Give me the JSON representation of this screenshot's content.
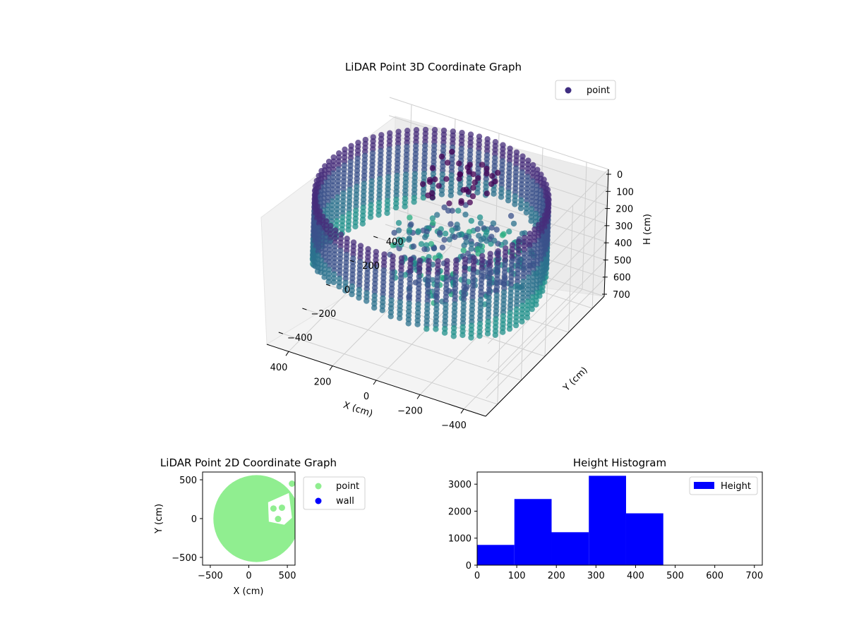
{
  "colors": {
    "scatter2d": "#90ee90",
    "wall": "#0000ff",
    "histogram": "#0000ff",
    "viridis_low": "#440154",
    "viridis_mid": "#3b528b",
    "viridis_teal": "#21918c",
    "viridis_light": "#5ec962"
  },
  "chart_data": [
    {
      "type": "scatter",
      "subtype": "3d",
      "title": "LiDAR Point 3D Coordinate Graph",
      "xlabel": "X (cm)",
      "ylabel": "Y (cm)",
      "zlabel": "H (cm)",
      "xticks": [
        "−400",
        "−200",
        "0",
        "200",
        "400"
      ],
      "yticks": [
        "400",
        "200",
        "0",
        "−200",
        "−400"
      ],
      "zticks": [
        "0",
        "100",
        "200",
        "300",
        "400",
        "500",
        "600",
        "700"
      ],
      "xlim": [
        -500,
        500
      ],
      "ylim": [
        -500,
        500
      ],
      "zlim": [
        0,
        700
      ],
      "z_inverted": true,
      "colormap": "viridis",
      "legend": {
        "labels": [
          "point"
        ],
        "placement": "top-right"
      },
      "description_values": {
        "shape": "cylindrical wall of points, radius ~500 cm",
        "height_range": [
          0,
          470
        ]
      }
    },
    {
      "type": "scatter",
      "title": "LiDAR Point 2D Coordinate Graph",
      "xlabel": "X (cm)",
      "ylabel": "Y (cm)",
      "xticks": [
        "−500",
        "0",
        "500"
      ],
      "yticks": [
        "500",
        "0",
        "−500"
      ],
      "xlim": [
        -600,
        600
      ],
      "ylim": [
        -600,
        600
      ],
      "series": [
        {
          "name": "point",
          "color": "#90ee90",
          "circle": {
            "cx": 100,
            "cy": 0,
            "r": 560
          },
          "extra_points": [
            [
              320,
              130
            ],
            [
              380,
              -5
            ],
            [
              430,
              140
            ],
            [
              560,
              450
            ]
          ]
        },
        {
          "name": "wall",
          "color": "#0000ff",
          "points": []
        }
      ],
      "legend": {
        "labels": [
          "point",
          "wall"
        ],
        "placement": "outside-right"
      }
    },
    {
      "type": "bar",
      "subtype": "histogram",
      "title": "Height Histogram",
      "xticks": [
        "0",
        "100",
        "200",
        "300",
        "400",
        "500",
        "600",
        "700"
      ],
      "yticks": [
        "0",
        "1000",
        "2000",
        "3000"
      ],
      "xlim": [
        0,
        720
      ],
      "ylim": [
        0,
        3450
      ],
      "bins": [
        {
          "x0": 0,
          "x1": 94,
          "value": 750
        },
        {
          "x0": 94,
          "x1": 188,
          "value": 2450
        },
        {
          "x0": 188,
          "x1": 282,
          "value": 1220
        },
        {
          "x0": 282,
          "x1": 376,
          "value": 3310
        },
        {
          "x0": 376,
          "x1": 470,
          "value": 1920
        }
      ],
      "legend": {
        "labels": [
          "Height"
        ],
        "placement": "top-right"
      }
    }
  ]
}
